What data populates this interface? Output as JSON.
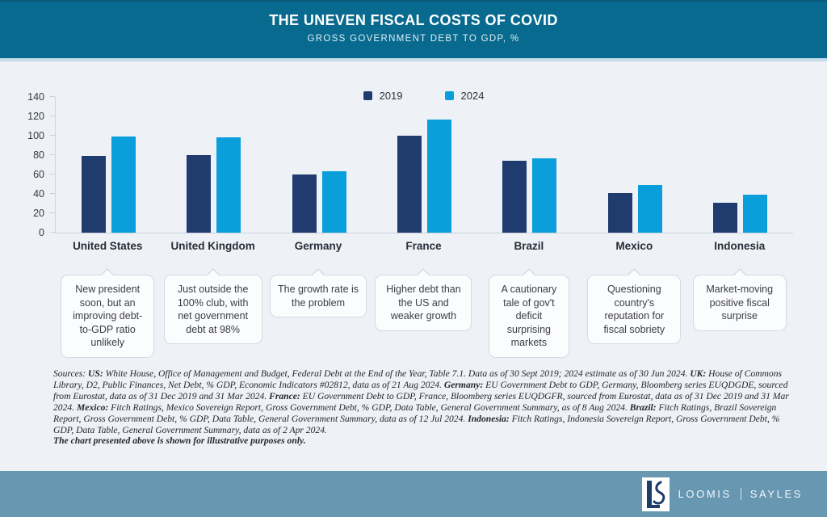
{
  "header": {
    "title": "THE UNEVEN FISCAL COSTS OF COVID",
    "subtitle": "GROSS GOVERNMENT DEBT TO GDP, %"
  },
  "chart_data": {
    "type": "bar",
    "title": "THE UNEVEN FISCAL COSTS OF COVID",
    "subtitle": "GROSS GOVERNMENT DEBT TO GDP, %",
    "categories": [
      "United States",
      "United Kingdom",
      "Germany",
      "France",
      "Brazil",
      "Mexico",
      "Indonesia"
    ],
    "series": [
      {
        "name": "2019",
        "color": "#203c6e",
        "values": [
          79,
          80,
          60,
          100,
          74,
          41,
          31
        ]
      },
      {
        "name": "2024",
        "color": "#0a9edb",
        "values": [
          99,
          98,
          63,
          117,
          77,
          49,
          39
        ]
      }
    ],
    "ylim": [
      0,
      140
    ],
    "yticks": [
      0,
      20,
      40,
      60,
      80,
      100,
      120,
      140
    ],
    "grid": false,
    "legend_position": "top-center",
    "annotations": [
      "New president soon, but an improving debt-to-GDP ratio unlikely",
      "Just outside the 100% club, with net government debt at 98%",
      "The growth rate is the problem",
      "Higher debt than the US and weaker growth",
      "A cautionary tale of gov't deficit surprising markets",
      "Questioning country's reputation for fiscal sobriety",
      "Market-moving positive fiscal surprise"
    ]
  },
  "callouts": [
    "New president soon, but an improving debt-to-GDP ratio unlikely",
    "Just outside the 100% club, with net government debt at 98%",
    "The growth rate is the problem",
    "Higher debt than the US and weaker growth",
    "A cautionary tale of gov't deficit surprising markets",
    "Questioning country's reputation for fiscal sobriety",
    "Market-moving positive fiscal surprise"
  ],
  "sources": {
    "segments": [
      {
        "b": false,
        "t": "Sources: "
      },
      {
        "b": true,
        "t": "US:"
      },
      {
        "b": false,
        "t": " White House, Office of Management and Budget, Federal Debt at the End of the Year, Table 7.1. Data as of 30 Sept 2019; 2024 estimate as of 30 Jun 2024. "
      },
      {
        "b": true,
        "t": "UK:"
      },
      {
        "b": false,
        "t": " House of Commons Library, D2, Public Finances, Net Debt, % GDP, Economic Indicators #02812, data as of 21 Aug 2024. "
      },
      {
        "b": true,
        "t": "Germany:"
      },
      {
        "b": false,
        "t": " EU Government Debt to GDP, Germany, Bloomberg series EUQDGDE, sourced from Eurostat, data as of 31 Dec 2019 and 31 Mar 2024. "
      },
      {
        "b": true,
        "t": "France:"
      },
      {
        "b": false,
        "t": " EU Government Debt to GDP, France, Bloomberg series EUQDGFR, sourced from Eurostat, data as of 31 Dec 2019 and 31 Mar 2024. "
      },
      {
        "b": true,
        "t": "Mexico:"
      },
      {
        "b": false,
        "t": " Fitch Ratings, Mexico Sovereign Report, Gross Government Debt, % GDP, Data Table, General Government Summary, as of 8 Aug 2024. "
      },
      {
        "b": true,
        "t": "Brazil:"
      },
      {
        "b": false,
        "t": " Fitch Ratings, Brazil Sovereign Report, Gross Government Debt, % GDP, Data Table, General Government Summary, data as of 12 Jul 2024. "
      },
      {
        "b": true,
        "t": "Indonesia:"
      },
      {
        "b": false,
        "t": " Fitch Ratings, Indonesia Sovereign Report, Gross Government Debt, % GDP, Data Table, General Government Summary, data as of 2 Apr 2024."
      }
    ],
    "disclaimer": "The chart presented above is shown for illustrative purposes only."
  },
  "footer": {
    "brand_left": "LOOMIS",
    "brand_right": "SAYLES",
    "logo": "ls-monogram"
  },
  "colors": {
    "header_bg": "#076a8e",
    "header_strip": "#c3dcea",
    "page_bg": "#eef1f6",
    "footer_bg": "#6897b2",
    "bar_2019": "#203c6e",
    "bar_2024": "#0a9edb"
  }
}
